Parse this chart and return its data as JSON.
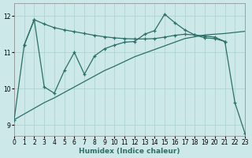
{
  "background_color": "#cde8e8",
  "grid_color": "#aacfcf",
  "line_color": "#2a7068",
  "xlabel": "Humidex (Indice chaleur)",
  "xlim": [
    0,
    23
  ],
  "ylim": [
    8.7,
    12.35
  ],
  "xticks": [
    0,
    1,
    2,
    3,
    4,
    5,
    6,
    7,
    8,
    9,
    10,
    11,
    12,
    13,
    14,
    15,
    16,
    17,
    18,
    19,
    20,
    21,
    22,
    23
  ],
  "yticks": [
    9,
    10,
    11,
    12
  ],
  "line1_x": [
    1,
    2,
    3,
    4,
    5,
    6,
    7,
    8,
    9,
    10,
    11,
    12,
    13,
    14,
    15,
    16,
    17,
    18,
    19,
    20,
    21
  ],
  "line1_y": [
    11.2,
    11.9,
    11.78,
    11.68,
    11.62,
    11.57,
    11.52,
    11.47,
    11.43,
    11.4,
    11.38,
    11.37,
    11.37,
    11.38,
    11.42,
    11.47,
    11.5,
    11.48,
    11.45,
    11.42,
    11.3
  ],
  "line2_x": [
    0,
    1,
    2,
    3,
    4,
    5,
    6,
    7,
    8,
    9,
    10,
    11,
    12,
    13,
    14,
    15,
    16,
    17,
    18,
    19,
    20,
    21,
    22,
    23
  ],
  "line2_y": [
    9.15,
    11.2,
    11.9,
    10.05,
    9.88,
    10.5,
    11.0,
    10.4,
    10.9,
    11.1,
    11.2,
    11.28,
    11.3,
    11.5,
    11.6,
    12.05,
    11.82,
    11.62,
    11.48,
    11.4,
    11.38,
    11.3,
    9.62,
    8.78
  ],
  "line3_x": [
    0,
    3,
    4,
    5,
    6,
    7,
    8,
    9,
    10,
    11,
    12,
    13,
    14,
    15,
    16,
    17,
    18,
    19,
    20,
    21,
    22,
    23
  ],
  "line3_y": [
    9.15,
    9.62,
    9.75,
    9.9,
    10.05,
    10.2,
    10.35,
    10.5,
    10.62,
    10.75,
    10.88,
    10.98,
    11.08,
    11.18,
    11.28,
    11.38,
    11.43,
    11.48,
    11.5,
    11.52,
    11.55,
    11.58
  ]
}
